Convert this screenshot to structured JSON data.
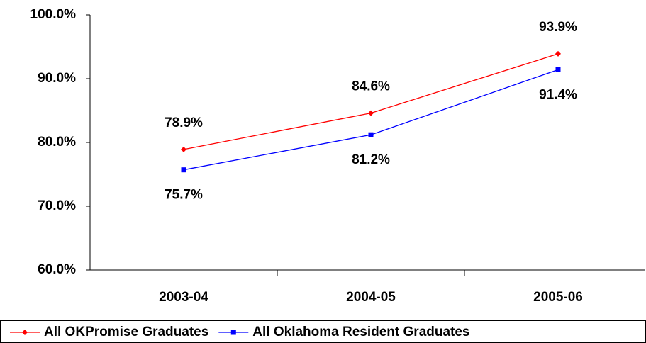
{
  "chart_data": {
    "type": "line",
    "categories": [
      "2003-04",
      "2004-05",
      "2005-06"
    ],
    "series": [
      {
        "name": "All OKPromise Graduates",
        "color": "#ff0000",
        "marker": "diamond",
        "values": [
          78.9,
          84.6,
          93.9
        ],
        "value_labels": [
          "78.9%",
          "84.6%",
          "93.9%"
        ]
      },
      {
        "name": "All Oklahoma Resident Graduates",
        "color": "#0000ff",
        "marker": "square",
        "values": [
          75.7,
          81.2,
          91.4
        ],
        "value_labels": [
          "75.7%",
          "81.2%",
          "91.4%"
        ]
      }
    ],
    "ylim": [
      60,
      100
    ],
    "yticks": [
      {
        "value": 60,
        "label": "60.0%"
      },
      {
        "value": 70,
        "label": "70.0%"
      },
      {
        "value": 80,
        "label": "80.0%"
      },
      {
        "value": 90,
        "label": "90.0%"
      },
      {
        "value": 100,
        "label": "100.0%"
      }
    ],
    "grid": false,
    "legend": "bottom"
  }
}
